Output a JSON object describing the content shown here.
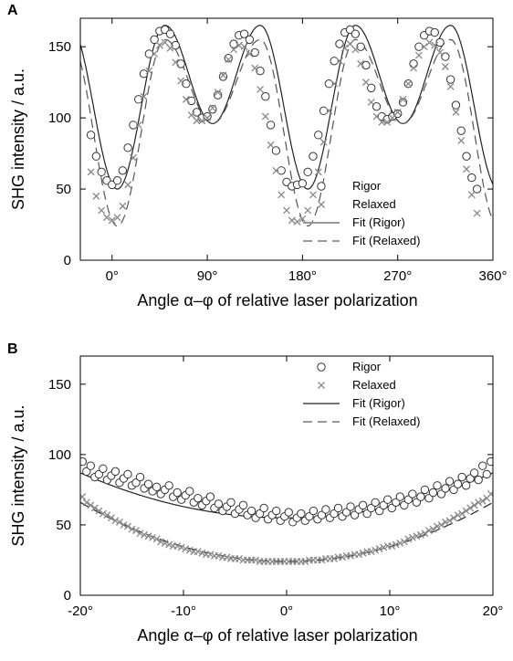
{
  "chart_data": [
    {
      "panel": "A",
      "type": "scatter",
      "xlabel": "Angle α–φ of relative laser polarization",
      "ylabel": "SHG intensity / a.u.",
      "xlim": [
        -30,
        360
      ],
      "ylim": [
        0,
        170
      ],
      "xticks": [
        0,
        90,
        180,
        270,
        360
      ],
      "xtick_labels": [
        "0°",
        "90°",
        "180°",
        "270°",
        "360°"
      ],
      "yticks": [
        0,
        50,
        100,
        150
      ],
      "ytick_labels": [
        "0",
        "50",
        "100",
        "150"
      ],
      "grid": false,
      "legend_position": "bottom-right",
      "legend": [
        "Rigor",
        "Relaxed",
        "Fit (Rigor)",
        "Fit (Relaxed)"
      ],
      "series": [
        {
          "name": "Rigor",
          "marker": "circle",
          "x": [
            -20,
            -15,
            -10,
            -5,
            0,
            5,
            10,
            15,
            20,
            25,
            30,
            35,
            40,
            45,
            50,
            55,
            60,
            65,
            70,
            75,
            80,
            85,
            90,
            95,
            100,
            105,
            110,
            115,
            120,
            125,
            130,
            135,
            140,
            145,
            150,
            155,
            160,
            165,
            170,
            175,
            180,
            185,
            190,
            195,
            200,
            205,
            210,
            215,
            220,
            225,
            230,
            235,
            240,
            245,
            250,
            255,
            260,
            265,
            270,
            275,
            280,
            285,
            290,
            295,
            300,
            305,
            310,
            315,
            320,
            325,
            330,
            335,
            340,
            345
          ],
          "y": [
            88,
            73,
            62,
            56,
            53,
            56,
            63,
            79,
            95,
            113,
            131,
            145,
            155,
            161,
            162,
            159,
            151,
            138,
            124,
            112,
            104,
            100,
            101,
            106,
            116,
            129,
            142,
            152,
            158,
            159,
            155,
            146,
            133,
            115,
            95,
            77,
            63,
            55,
            52,
            53,
            54,
            62,
            73,
            88,
            105,
            124,
            140,
            152,
            160,
            162,
            159,
            150,
            137,
            121,
            108,
            101,
            99,
            101,
            103,
            111,
            124,
            138,
            150,
            158,
            161,
            160,
            153,
            143,
            127,
            109,
            91,
            73,
            58,
            50
          ]
        },
        {
          "name": "Relaxed",
          "marker": "x",
          "x": [
            -20,
            -15,
            -10,
            -5,
            0,
            5,
            10,
            15,
            20,
            25,
            30,
            35,
            40,
            45,
            50,
            55,
            60,
            65,
            70,
            75,
            80,
            85,
            90,
            95,
            100,
            105,
            110,
            115,
            120,
            125,
            130,
            135,
            140,
            145,
            150,
            155,
            160,
            165,
            170,
            175,
            180,
            185,
            190,
            195,
            200,
            205,
            210,
            215,
            220,
            225,
            230,
            235,
            240,
            245,
            250,
            255,
            260,
            265,
            270,
            275,
            280,
            285,
            290,
            295,
            300,
            305,
            310,
            315,
            320,
            325,
            330,
            335,
            340,
            345
          ],
          "y": [
            62,
            45,
            35,
            30,
            28,
            30,
            38,
            53,
            72,
            95,
            115,
            133,
            145,
            151,
            153,
            149,
            139,
            126,
            113,
            102,
            98,
            98,
            100,
            107,
            118,
            130,
            141,
            148,
            151,
            150,
            145,
            135,
            120,
            101,
            81,
            63,
            46,
            35,
            28,
            27,
            29,
            35,
            46,
            62,
            83,
            105,
            124,
            140,
            149,
            152,
            148,
            138,
            125,
            111,
            101,
            97,
            97,
            100,
            104,
            113,
            124,
            135,
            144,
            150,
            153,
            151,
            146,
            136,
            122,
            104,
            84,
            64,
            46,
            33
          ]
        },
        {
          "name": "Fit (Rigor)",
          "line": "solid",
          "params": {
            "A": 50,
            "B": 165,
            "C": 96
          }
        },
        {
          "name": "Fit (Relaxed)",
          "line": "dashed",
          "params": {
            "A": 24,
            "B": 155,
            "C": 96
          }
        }
      ]
    },
    {
      "panel": "B",
      "type": "scatter",
      "xlabel": "Angle α–φ of relative laser polarization",
      "ylabel": "SHG intensity / a.u.",
      "xlim": [
        -20,
        20
      ],
      "ylim": [
        0,
        170
      ],
      "xticks": [
        -20,
        -10,
        0,
        10,
        20
      ],
      "xtick_labels": [
        "-20°",
        "-10°",
        "0°",
        "10°",
        "20°"
      ],
      "yticks": [
        0,
        50,
        100,
        150
      ],
      "ytick_labels": [
        "0",
        "50",
        "100",
        "150"
      ],
      "grid": false,
      "legend_position": "top-right",
      "legend": [
        "Rigor",
        "Relaxed",
        "Fit (Rigor)",
        "Fit (Relaxed)"
      ],
      "series": [
        {
          "name": "Rigor",
          "marker": "circle",
          "x": [
            -19.8,
            -19.4,
            -19.0,
            -18.6,
            -18.2,
            -17.8,
            -17.4,
            -17.0,
            -16.6,
            -16.2,
            -15.8,
            -15.4,
            -15.0,
            -14.6,
            -14.2,
            -13.8,
            -13.4,
            -13.0,
            -12.6,
            -12.2,
            -11.8,
            -11.4,
            -11.0,
            -10.6,
            -10.2,
            -9.8,
            -9.4,
            -9.0,
            -8.6,
            -8.2,
            -7.8,
            -7.4,
            -7.0,
            -6.6,
            -6.2,
            -5.8,
            -5.4,
            -5.0,
            -4.6,
            -4.2,
            -3.8,
            -3.4,
            -3.0,
            -2.6,
            -2.2,
            -1.8,
            -1.4,
            -1.0,
            -0.6,
            -0.2,
            0.2,
            0.6,
            1.0,
            1.4,
            1.8,
            2.2,
            2.6,
            3.0,
            3.4,
            3.8,
            4.2,
            4.6,
            5.0,
            5.4,
            5.8,
            6.2,
            6.6,
            7.0,
            7.4,
            7.8,
            8.2,
            8.6,
            9.0,
            9.4,
            9.8,
            10.2,
            10.6,
            11.0,
            11.4,
            11.8,
            12.2,
            12.6,
            13.0,
            13.4,
            13.8,
            14.2,
            14.6,
            15.0,
            15.4,
            15.8,
            16.2,
            16.6,
            17.0,
            17.4,
            17.8,
            18.2,
            18.6,
            19.0,
            19.4,
            19.8
          ],
          "y": [
            95,
            88,
            92,
            84,
            86,
            90,
            82,
            85,
            88,
            80,
            83,
            86,
            78,
            80,
            84,
            76,
            79,
            74,
            77,
            72,
            75,
            78,
            70,
            73,
            68,
            71,
            74,
            66,
            69,
            64,
            67,
            70,
            62,
            65,
            60,
            63,
            66,
            58,
            61,
            64,
            57,
            60,
            55,
            58,
            62,
            54,
            57,
            60,
            53,
            56,
            59,
            52,
            55,
            58,
            53,
            56,
            60,
            54,
            57,
            61,
            55,
            58,
            62,
            56,
            59,
            63,
            57,
            61,
            64,
            58,
            62,
            66,
            60,
            64,
            68,
            62,
            66,
            70,
            64,
            68,
            72,
            66,
            70,
            75,
            69,
            73,
            78,
            72,
            76,
            81,
            75,
            79,
            84,
            78,
            83,
            87,
            82,
            92,
            86,
            95
          ]
        },
        {
          "name": "Relaxed",
          "marker": "x",
          "x": [
            -19.8,
            -19.4,
            -19.0,
            -18.6,
            -18.2,
            -17.8,
            -17.4,
            -17.0,
            -16.6,
            -16.2,
            -15.8,
            -15.4,
            -15.0,
            -14.6,
            -14.2,
            -13.8,
            -13.4,
            -13.0,
            -12.6,
            -12.2,
            -11.8,
            -11.4,
            -11.0,
            -10.6,
            -10.2,
            -9.8,
            -9.4,
            -9.0,
            -8.6,
            -8.2,
            -7.8,
            -7.4,
            -7.0,
            -6.6,
            -6.2,
            -5.8,
            -5.4,
            -5.0,
            -4.6,
            -4.2,
            -3.8,
            -3.4,
            -3.0,
            -2.6,
            -2.2,
            -1.8,
            -1.4,
            -1.0,
            -0.6,
            -0.2,
            0.2,
            0.6,
            1.0,
            1.4,
            1.8,
            2.2,
            2.6,
            3.0,
            3.4,
            3.8,
            4.2,
            4.6,
            5.0,
            5.4,
            5.8,
            6.2,
            6.6,
            7.0,
            7.4,
            7.8,
            8.2,
            8.6,
            9.0,
            9.4,
            9.8,
            10.2,
            10.6,
            11.0,
            11.4,
            11.8,
            12.2,
            12.6,
            13.0,
            13.4,
            13.8,
            14.2,
            14.6,
            15.0,
            15.4,
            15.8,
            16.2,
            16.6,
            17.0,
            17.4,
            17.8,
            18.2,
            18.6,
            19.0,
            19.4,
            19.8
          ],
          "y": [
            70,
            66,
            64,
            62,
            60,
            58,
            57,
            55,
            53,
            52,
            50,
            49,
            47,
            46,
            44,
            43,
            42,
            41,
            40,
            38,
            37,
            36,
            35,
            35,
            34,
            33,
            32,
            31,
            31,
            30,
            29,
            29,
            28,
            28,
            27,
            27,
            26,
            26,
            26,
            25,
            25,
            25,
            25,
            24,
            24,
            24,
            24,
            24,
            24,
            24,
            24,
            24,
            24,
            24,
            24,
            25,
            25,
            25,
            25,
            26,
            26,
            26,
            27,
            27,
            28,
            28,
            29,
            29,
            30,
            31,
            31,
            32,
            33,
            34,
            35,
            35,
            36,
            37,
            38,
            40,
            41,
            42,
            43,
            44,
            46,
            47,
            49,
            50,
            52,
            53,
            55,
            57,
            58,
            60,
            62,
            64,
            66,
            67,
            69,
            72
          ]
        },
        {
          "name": "Fit (Rigor)",
          "line": "solid",
          "params": {
            "min": 55,
            "k": 0.08
          }
        },
        {
          "name": "Fit (Relaxed)",
          "line": "dashed",
          "params": {
            "min": 24,
            "k": 0.105
          }
        }
      ]
    }
  ],
  "panel_letters": [
    "A",
    "B"
  ]
}
